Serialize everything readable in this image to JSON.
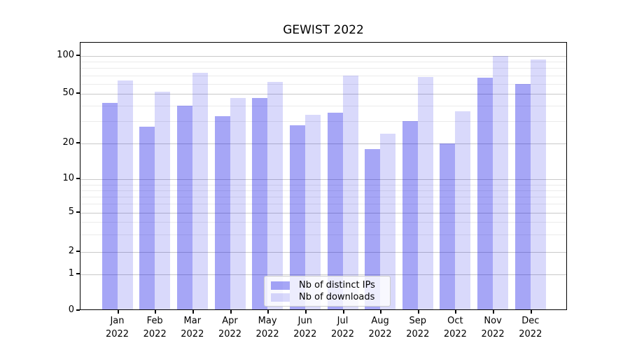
{
  "chart_data": {
    "type": "bar",
    "title": "GEWIST 2022",
    "categories": [
      "Jan",
      "Feb",
      "Mar",
      "Apr",
      "May",
      "Jun",
      "Jul",
      "Aug",
      "Sep",
      "Oct",
      "Nov",
      "Dec"
    ],
    "category_year": "2022",
    "series": [
      {
        "name": "Nb of distinct IPs",
        "color": "rgba(0,0,230,0.35)",
        "color_hex": "#a6a6f6",
        "values": [
          42,
          27,
          40,
          33,
          46,
          28,
          35,
          18,
          30,
          20,
          67,
          60
        ]
      },
      {
        "name": "Nb of downloads",
        "color": "rgba(0,0,230,0.15)",
        "color_hex": "#d9d9fb",
        "values": [
          64,
          52,
          73,
          46,
          62,
          34,
          70,
          24,
          68,
          36,
          100,
          93
        ]
      }
    ],
    "yscale": "symlog",
    "y_ticks": [
      0,
      1,
      2,
      5,
      10,
      20,
      50,
      100
    ],
    "y_minor_ticks": [
      3,
      4,
      6,
      7,
      8,
      9,
      30,
      40,
      60,
      70,
      80,
      90
    ],
    "ylim": [
      0,
      115
    ],
    "xlabel": "",
    "ylabel": "",
    "grid": "horizontal major and minor gridlines",
    "legend_position": "lower center"
  }
}
